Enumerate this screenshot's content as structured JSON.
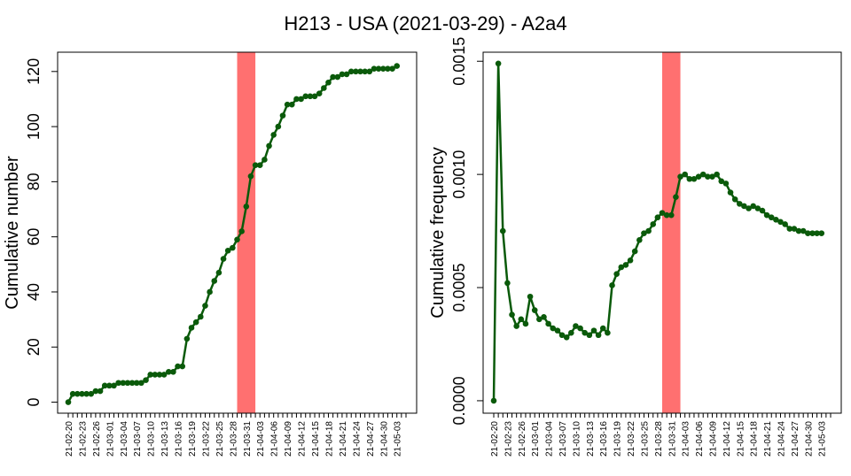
{
  "figure": {
    "title": "H213 - USA (2021-03-29) - A2a4"
  },
  "chart_data": [
    {
      "type": "line",
      "ylabel": "Cumulative number",
      "ylim": [
        -4,
        127
      ],
      "yticks": [
        0,
        20,
        40,
        60,
        80,
        100,
        120
      ],
      "ytick_labels": [
        "0",
        "20",
        "40",
        "60",
        "80",
        "100",
        "120"
      ],
      "x_start": "2021-02-20",
      "x_end": "2021-05-05",
      "xtick_labels": [
        "21-02-20",
        "21-02-23",
        "21-02-26",
        "21-03-01",
        "21-03-04",
        "21-03-07",
        "21-03-10",
        "21-03-13",
        "21-03-16",
        "21-03-19",
        "21-03-22",
        "21-03-25",
        "21-03-28",
        "21-03-31",
        "21-04-03",
        "21-04-06",
        "21-04-09",
        "21-04-12",
        "21-04-15",
        "21-04-18",
        "21-04-21",
        "21-04-24",
        "21-04-27",
        "21-04-30",
        "21-05-03"
      ],
      "highlight_span": [
        "2021-03-29",
        "2021-04-02"
      ],
      "highlight_color": "#ff7070",
      "line_color": "#0a5a0a",
      "series": [
        {
          "values": [
            0,
            3,
            3,
            3,
            3,
            3,
            4,
            4,
            6,
            6,
            6,
            7,
            7,
            7,
            7,
            7,
            7,
            8,
            10,
            10,
            10,
            10,
            11,
            11,
            13,
            13,
            23,
            27,
            29,
            31,
            35,
            40,
            44,
            47,
            52,
            55,
            56,
            59,
            62,
            71,
            82,
            86,
            86,
            88,
            93,
            97,
            100,
            104,
            108,
            108,
            110,
            110,
            111,
            111,
            111,
            112,
            114,
            116,
            118,
            118,
            119,
            119,
            120,
            120,
            120,
            120,
            120,
            121,
            121,
            121,
            121,
            121,
            122
          ]
        }
      ]
    },
    {
      "type": "line",
      "ylabel": "Cumulative frequency",
      "ylim": [
        -5.5e-05,
        0.00154
      ],
      "yticks": [
        0,
        0.0005,
        0.001,
        0.0015
      ],
      "ytick_labels": [
        "0.0000",
        "0.0005",
        "0.0010",
        "0.0015"
      ],
      "x_start": "2021-02-20",
      "x_end": "2021-05-05",
      "xtick_labels": [
        "21-02-20",
        "21-02-23",
        "21-02-26",
        "21-03-01",
        "21-03-04",
        "21-03-07",
        "21-03-10",
        "21-03-13",
        "21-03-16",
        "21-03-19",
        "21-03-22",
        "21-03-25",
        "21-03-28",
        "21-03-31",
        "21-04-03",
        "21-04-06",
        "21-04-09",
        "21-04-12",
        "21-04-15",
        "21-04-18",
        "21-04-21",
        "21-04-24",
        "21-04-27",
        "21-04-30",
        "21-05-03"
      ],
      "highlight_span": [
        "2021-03-29",
        "2021-04-02"
      ],
      "highlight_color": "#ff7070",
      "line_color": "#0a5a0a",
      "series": [
        {
          "values": [
            0,
            0.00149,
            0.00075,
            0.00052,
            0.00038,
            0.00033,
            0.00036,
            0.00034,
            0.00046,
            0.0004,
            0.00036,
            0.00037,
            0.00034,
            0.00032,
            0.00031,
            0.00029,
            0.00028,
            0.0003,
            0.00033,
            0.00032,
            0.0003,
            0.00029,
            0.00031,
            0.00029,
            0.00032,
            0.0003,
            0.00051,
            0.00056,
            0.00059,
            0.0006,
            0.00062,
            0.00066,
            0.00071,
            0.00074,
            0.00075,
            0.00078,
            0.00081,
            0.00083,
            0.00082,
            0.00082,
            0.0009,
            0.00099,
            0.001,
            0.00098,
            0.00098,
            0.00099,
            0.001,
            0.00099,
            0.00099,
            0.001,
            0.00097,
            0.00096,
            0.00092,
            0.00089,
            0.00087,
            0.00086,
            0.00085,
            0.00086,
            0.00085,
            0.00084,
            0.00082,
            0.00081,
            0.0008,
            0.00079,
            0.00078,
            0.00076,
            0.00076,
            0.00075,
            0.00075,
            0.00074,
            0.00074,
            0.00074,
            0.00074
          ]
        }
      ]
    }
  ]
}
